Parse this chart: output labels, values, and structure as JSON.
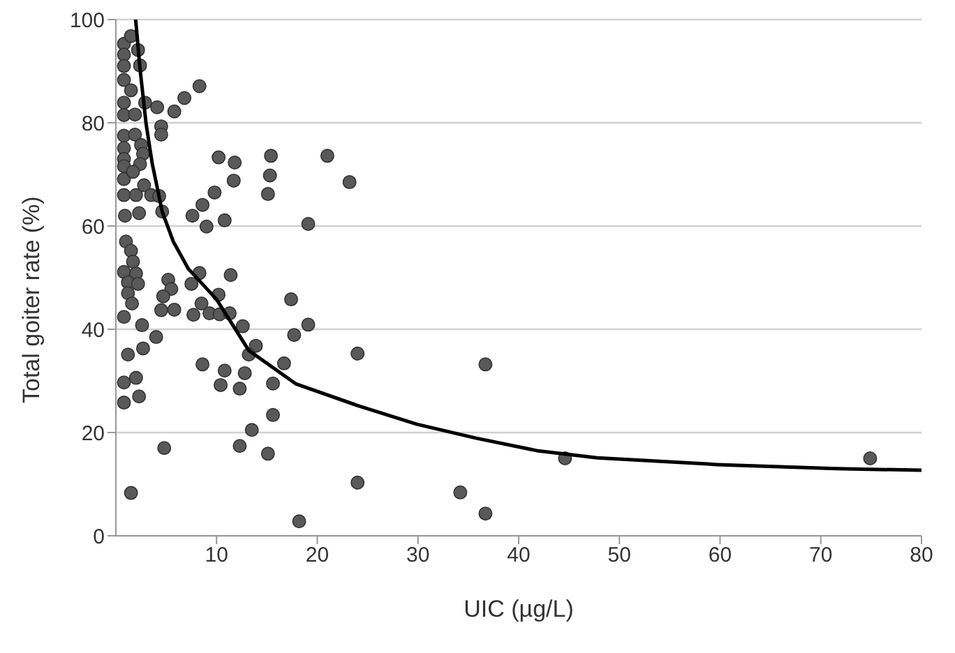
{
  "chart_data": {
    "type": "scatter",
    "xlabel": "UIC (µg/L)",
    "ylabel": "Total goiter rate (%)",
    "xlim": [
      0,
      80
    ],
    "xticks": [
      10,
      20,
      30,
      40,
      50,
      60,
      70,
      80
    ],
    "ylim": [
      0,
      100
    ],
    "yticks": [
      0,
      20,
      40,
      60,
      80,
      100
    ],
    "grid": "y",
    "legend": false,
    "series": [
      {
        "type": "scatter",
        "color": "#595959",
        "marker": "circle",
        "x": [
          0.8,
          1.5,
          2.2,
          0.8,
          2.4,
          0.8,
          0.8,
          1.5,
          0.8,
          2.9,
          0.8,
          1.9,
          0.8,
          1.9,
          0.8,
          2.5,
          0.8,
          2.7,
          0.8,
          2.4,
          0.8,
          1.7,
          0.8,
          2.0,
          2.8,
          3.5,
          2.3,
          0.9,
          4.1,
          4.5,
          4.5,
          5.8,
          6.8,
          8.3,
          4.3,
          4.6,
          1.0,
          1.5,
          1.7,
          0.8,
          2.0,
          1.2,
          2.2,
          1.2,
          1.6,
          0.8,
          2.6,
          2.7,
          1.2,
          4.0,
          5.2,
          5.5,
          4.7,
          4.5,
          5.8,
          0.8,
          2.0,
          0.8,
          2.3,
          4.8,
          1.5,
          7.5,
          8.3,
          7.7,
          8.5,
          9.3,
          10.2,
          10.3,
          11.3,
          11.4,
          7.6,
          8.6,
          9.0,
          9.8,
          10.8,
          10.2,
          11.8,
          11.7,
          15.4,
          15.3,
          15.1,
          21.0,
          23.2,
          19.1,
          8.6,
          10.8,
          10.4,
          12.3,
          12.8,
          12.6,
          13.9,
          13.2,
          15.6,
          16.7,
          17.4,
          17.7,
          19.1,
          15.6,
          13.5,
          12.3,
          15.1,
          24.0,
          24.0,
          18.2,
          34.2,
          36.7,
          36.7,
          44.6,
          74.9
        ],
        "values": [
          95.3,
          96.8,
          94.1,
          93.2,
          91.1,
          91.0,
          88.3,
          86.3,
          83.9,
          83.9,
          81.5,
          81.6,
          77.5,
          77.7,
          75.1,
          75.7,
          73.0,
          74.0,
          71.6,
          72.0,
          69.1,
          70.5,
          66.0,
          66.0,
          67.9,
          66.0,
          62.5,
          62.0,
          83.0,
          79.3,
          77.7,
          82.2,
          84.8,
          87.1,
          65.8,
          62.8,
          57.0,
          55.2,
          53.1,
          51.1,
          50.8,
          49.1,
          48.8,
          47.0,
          45.0,
          42.4,
          40.8,
          36.3,
          35.1,
          38.5,
          49.6,
          47.8,
          46.4,
          43.7,
          43.8,
          29.7,
          30.6,
          25.8,
          27.0,
          17.0,
          8.3,
          48.8,
          50.9,
          42.8,
          45.0,
          43.1,
          46.7,
          42.9,
          43.1,
          50.5,
          62.0,
          64.1,
          59.9,
          66.5,
          61.1,
          73.3,
          72.3,
          68.8,
          73.6,
          69.8,
          66.2,
          73.6,
          68.5,
          60.4,
          33.2,
          32.0,
          29.2,
          28.5,
          31.5,
          40.6,
          36.8,
          35.1,
          29.5,
          33.4,
          45.8,
          38.9,
          40.9,
          23.4,
          20.5,
          17.4,
          15.9,
          35.3,
          10.3,
          2.8,
          8.4,
          4.3,
          33.2,
          15.0,
          15.0
        ]
      },
      {
        "type": "line",
        "color": "#000000",
        "marker": "none",
        "line_style": "solid",
        "x": [
          1.96,
          2.4,
          3.0,
          3.6,
          4.6,
          5.7,
          7.2,
          10,
          13.2,
          17.9,
          23.9,
          29.9,
          35.8,
          41.8,
          47.8,
          59.7,
          71.6,
          80
        ],
        "values": [
          100,
          90.4,
          79.8,
          72.2,
          62.8,
          57.0,
          51.7,
          45.8,
          35.9,
          29.4,
          25.3,
          21.6,
          18.9,
          16.5,
          15.1,
          13.8,
          13.0,
          12.7
        ]
      }
    ]
  }
}
